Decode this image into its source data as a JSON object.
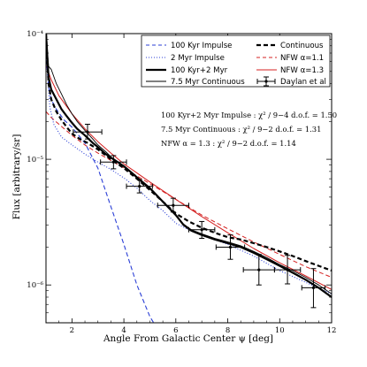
{
  "chart_data": {
    "type": "line",
    "xlabel": "Angle From Galactic Center ψ [deg]",
    "ylabel": "Flux [arbitrary/sr]",
    "xlim": [
      1,
      12
    ],
    "ylim": [
      5e-07,
      0.0001
    ],
    "yscale": "log",
    "grid": false,
    "legend_position": "top-right",
    "x_ticks": [
      {
        "v": 2,
        "label": "2"
      },
      {
        "v": 4,
        "label": "4"
      },
      {
        "v": 6,
        "label": "6"
      },
      {
        "v": 8,
        "label": "8"
      },
      {
        "v": 10,
        "label": "10"
      },
      {
        "v": 12,
        "label": "12"
      }
    ],
    "y_ticks": [
      {
        "v": 0.0001,
        "label": "10⁻⁴"
      },
      {
        "v": 1e-05,
        "label": "10⁻⁵"
      },
      {
        "v": 1e-06,
        "label": "10⁻⁶"
      }
    ],
    "annotations": [
      "100 Kyr+2 Myr Impulse : χ² / 9−4 d.o.f. = 1.50",
      "7.5 Myr Continuous : χ² / 9−2 d.o.f. = 1.31",
      "NFW α = 1.3 : χ² / 9−2 d.o.f. = 1.14"
    ],
    "series": [
      {
        "name": "100 Kyr Impulse",
        "color": "#2b3fd6",
        "style": "dashed",
        "width": 1.1,
        "x": [
          1.0,
          1.1,
          1.2,
          1.4,
          1.7,
          2.0,
          2.5,
          3.0,
          3.5,
          4.0,
          4.5,
          5.0,
          5.2
        ],
        "y": [
          7e-05,
          3.8e-05,
          3e-05,
          2.5e-05,
          2.05e-05,
          1.8e-05,
          1.35e-05,
          8.5e-06,
          4.2e-06,
          2.1e-06,
          1e-06,
          5.6e-07,
          4.8e-07
        ]
      },
      {
        "name": "2 Myr Impulse",
        "color": "#2b3fd6",
        "style": "dotted",
        "width": 1.1,
        "x": [
          1.0,
          1.15,
          1.3,
          1.6,
          2.0,
          2.5,
          3.0,
          3.5,
          4.0,
          4.5,
          5.0,
          5.5,
          6.0,
          6.5,
          7.0,
          7.5,
          8.0,
          9.0,
          10.0,
          11.0,
          12.0
        ],
        "y": [
          7e-05,
          2.6e-05,
          1.9e-05,
          1.5e-05,
          1.3e-05,
          1.1e-05,
          9.5e-06,
          8.3e-06,
          7.1e-06,
          5.9e-06,
          4.7e-06,
          3.9e-06,
          3.1e-06,
          2.75e-06,
          2.5e-06,
          2.3e-06,
          2.1e-06,
          1.7e-06,
          1.3e-06,
          1.05e-06,
          8.5e-07
        ]
      },
      {
        "name": "100 Kyr+2 Myr",
        "color": "#000000",
        "style": "solid",
        "width": 2.2,
        "x": [
          1.0,
          1.1,
          1.2,
          1.4,
          1.6,
          1.8,
          2.0,
          2.2,
          2.5,
          2.8,
          3.0,
          3.3,
          3.6,
          4.0,
          4.3,
          4.6,
          5.0,
          5.5,
          6.0,
          6.3,
          6.6,
          7.0,
          7.5,
          8.0,
          8.5,
          9.0,
          9.5,
          10.0,
          10.5,
          11.0,
          11.5,
          12.0
        ],
        "y": [
          0.0001,
          4.5e-05,
          3.6e-05,
          3e-05,
          2.5e-05,
          2.2e-05,
          1.95e-05,
          1.75e-05,
          1.55e-05,
          1.35e-05,
          1.25e-05,
          1.1e-05,
          1e-05,
          8.8e-06,
          7.8e-06,
          6.9e-06,
          5.9e-06,
          4.6e-06,
          3.6e-06,
          3e-06,
          2.7e-06,
          2.5e-06,
          2.3e-06,
          2.15e-06,
          2e-06,
          1.8e-06,
          1.6e-06,
          1.42e-06,
          1.25e-06,
          1.1e-06,
          9.5e-07,
          8e-07
        ]
      },
      {
        "name": "7.5 Myr Continuous",
        "color": "#000000",
        "style": "solid",
        "width": 0.9,
        "x": [
          1.0,
          1.1,
          1.2,
          1.4,
          1.6,
          1.8,
          2.0,
          2.2,
          2.5,
          2.8,
          3.0,
          3.3,
          3.6,
          4.0,
          4.3,
          4.6,
          5.0,
          5.5,
          6.0,
          6.3,
          6.6,
          7.0,
          7.5,
          8.0,
          8.5,
          9.0,
          9.5,
          10.0,
          10.5,
          11.0,
          11.5,
          12.0
        ],
        "y": [
          0.0001,
          5.5e-05,
          5.2e-05,
          4e-05,
          3.3e-05,
          2.7e-05,
          2.3e-05,
          2e-05,
          1.7e-05,
          1.45e-05,
          1.3e-05,
          1.15e-05,
          1e-05,
          8.8e-06,
          7.7e-06,
          6.8e-06,
          5.8e-06,
          4.6e-06,
          3.6e-06,
          3.05e-06,
          2.75e-06,
          2.55e-06,
          2.35e-06,
          2.2e-06,
          2.05e-06,
          1.85e-06,
          1.65e-06,
          1.45e-06,
          1.3e-06,
          1.15e-06,
          1e-06,
          8.5e-07
        ]
      },
      {
        "name": "Continuous",
        "color": "#000000",
        "style": "dashed",
        "width": 2.2,
        "x": [
          1.0,
          1.1,
          1.2,
          1.4,
          1.6,
          1.8,
          2.0,
          2.3,
          2.6,
          3.0,
          3.5,
          4.0,
          4.5,
          5.0,
          5.5,
          6.0,
          6.5,
          7.0,
          7.5,
          8.0,
          8.5,
          9.0,
          9.5,
          10.0,
          10.5,
          11.0,
          11.5,
          12.0
        ],
        "y": [
          0.0001,
          4e-05,
          3e-05,
          2.4e-05,
          2.05e-05,
          1.8e-05,
          1.6e-05,
          1.45e-05,
          1.35e-05,
          1.2e-05,
          1e-05,
          8.5e-06,
          7e-06,
          5.7e-06,
          4.6e-06,
          3.7e-06,
          3.2e-06,
          2.85e-06,
          2.6e-06,
          2.4e-06,
          2.3e-06,
          2.15e-06,
          2e-06,
          1.85e-06,
          1.7e-06,
          1.55e-06,
          1.42e-06,
          1.3e-06
        ]
      },
      {
        "name": "NFW α=1.1",
        "color": "#d42020",
        "style": "dashed",
        "width": 1.0,
        "x": [
          1.0,
          1.2,
          1.5,
          2.0,
          2.5,
          3.0,
          3.5,
          4.0,
          5.0,
          6.0,
          7.0,
          8.0,
          9.0,
          10.0,
          11.0,
          12.0
        ],
        "y": [
          2.4e-05,
          2.15e-05,
          1.9e-05,
          1.55e-05,
          1.3e-05,
          1.12e-05,
          9.8e-06,
          8.5e-06,
          6.4e-06,
          4.8e-06,
          3.6e-06,
          2.8e-06,
          2.2e-06,
          1.75e-06,
          1.4e-06,
          1.15e-06
        ]
      },
      {
        "name": "NFW α=1.3",
        "color": "#d42020",
        "style": "solid",
        "width": 1.0,
        "x": [
          1.0,
          1.2,
          1.5,
          2.0,
          2.5,
          3.0,
          3.5,
          4.0,
          5.0,
          6.0,
          7.0,
          8.0,
          9.0,
          10.0,
          11.0,
          12.0
        ],
        "y": [
          5.6e-05,
          4.3e-05,
          3.2e-05,
          2.3e-05,
          1.75e-05,
          1.38e-05,
          1.12e-05,
          9.2e-06,
          6.6e-06,
          4.8e-06,
          3.5e-06,
          2.6e-06,
          1.95e-06,
          1.5e-06,
          1.18e-06,
          9.2e-07
        ]
      }
    ],
    "errorbar_series": {
      "name": "Daylan et al",
      "color": "#000000",
      "points": [
        {
          "x": 2.6,
          "y": 1.65e-05,
          "xerr": 0.55,
          "ylo": 1.45e-05,
          "yhi": 1.9e-05
        },
        {
          "x": 3.6,
          "y": 9.5e-06,
          "xerr": 0.5,
          "ylo": 8.4e-06,
          "yhi": 1.07e-05
        },
        {
          "x": 4.6,
          "y": 6.1e-06,
          "xerr": 0.5,
          "ylo": 5.4e-06,
          "yhi": 6.9e-06
        },
        {
          "x": 5.9,
          "y": 4.3e-06,
          "xerr": 0.6,
          "ylo": 3.8e-06,
          "yhi": 4.9e-06
        },
        {
          "x": 7.0,
          "y": 2.75e-06,
          "xerr": 0.5,
          "ylo": 2.35e-06,
          "yhi": 3.2e-06
        },
        {
          "x": 8.1,
          "y": 2e-06,
          "xerr": 0.55,
          "ylo": 1.6e-06,
          "yhi": 2.5e-06
        },
        {
          "x": 9.2,
          "y": 1.32e-06,
          "xerr": 0.6,
          "ylo": 1e-06,
          "yhi": 1.75e-06
        },
        {
          "x": 10.3,
          "y": 1.32e-06,
          "xerr": 0.5,
          "ylo": 1.02e-06,
          "yhi": 1.72e-06
        },
        {
          "x": 11.3,
          "y": 9.5e-07,
          "xerr": 0.45,
          "ylo": 6.6e-07,
          "yhi": 1.35e-06
        }
      ]
    }
  }
}
